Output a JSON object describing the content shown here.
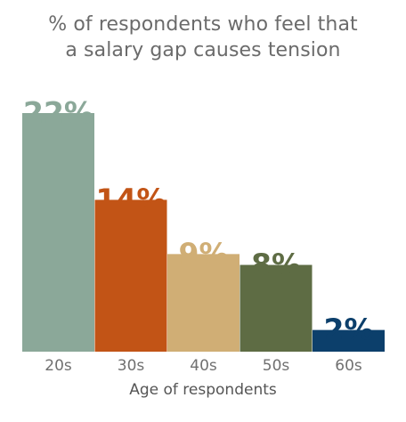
{
  "chart_data": {
    "type": "bar",
    "title_lines": [
      "% of respondents who feel that",
      "a salary gap causes tension"
    ],
    "categories": [
      "20s",
      "30s",
      "40s",
      "50s",
      "60s"
    ],
    "values": [
      22,
      14,
      9,
      8,
      2
    ],
    "value_labels": [
      "22%",
      "14%",
      "9%",
      "8%",
      "2%"
    ],
    "colors": [
      "#8ba899",
      "#c25416",
      "#d0ae75",
      "#5e6c44",
      "#0c3f6b"
    ],
    "xlabel": "Age of respondents",
    "ylabel": "",
    "ylim": [
      0,
      22
    ],
    "grid": false,
    "legend": "none"
  }
}
